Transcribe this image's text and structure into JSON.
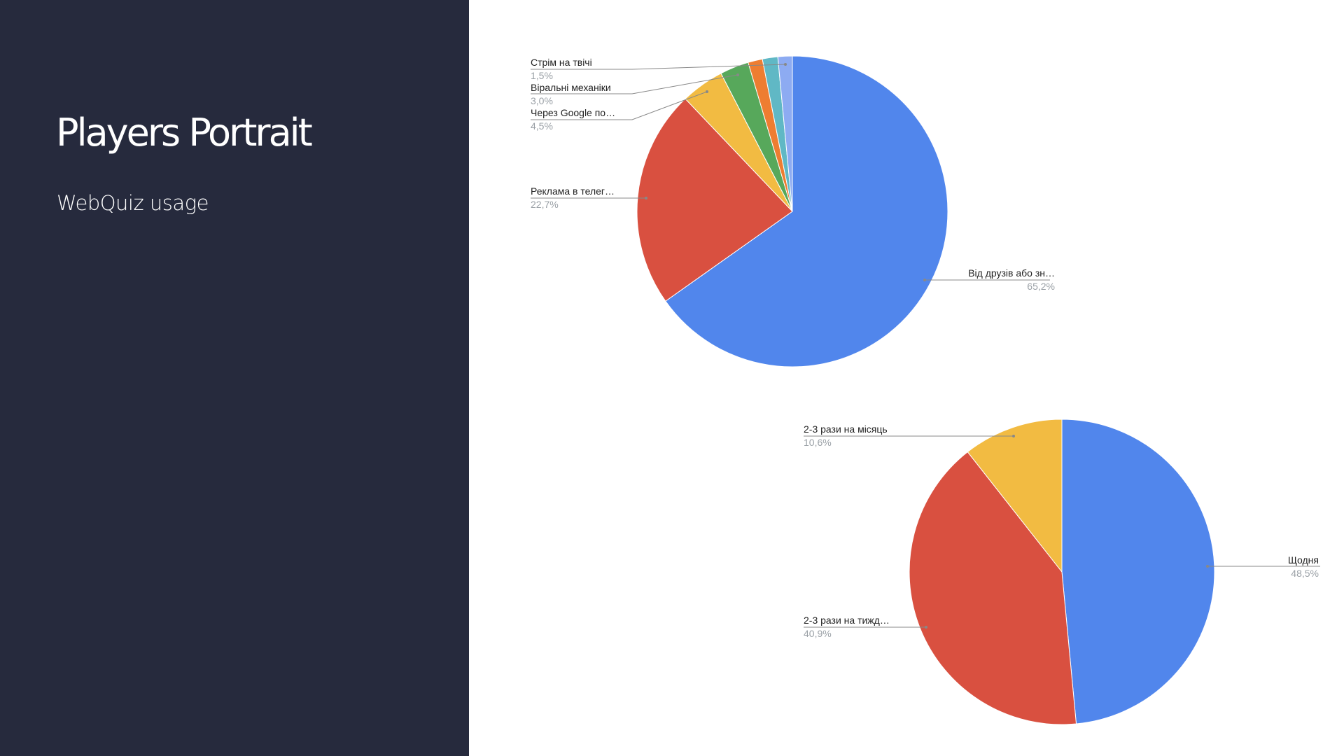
{
  "slide": {
    "title": "Players Portrait",
    "subtitle": "WebQuiz usage"
  },
  "chart_data": [
    {
      "type": "pie",
      "slices": [
        {
          "label": "Від друзів або зн…",
          "value": 65.2,
          "display": "65,2%",
          "color": "#5186ec"
        },
        {
          "label": "Реклама в телег…",
          "value": 22.7,
          "display": "22,7%",
          "color": "#d95040"
        },
        {
          "label": "Через Google по…",
          "value": 4.5,
          "display": "4,5%",
          "color": "#f2bb42"
        },
        {
          "label": "Віральні механіки",
          "value": 3.0,
          "display": "3,0%",
          "color": "#57a85b"
        },
        {
          "label": "",
          "value": 1.5,
          "display": "",
          "color": "#ee7d31"
        },
        {
          "label": "",
          "value": 1.6,
          "display": "",
          "color": "#60b8c5"
        },
        {
          "label": "Стрім на твічі",
          "value": 1.5,
          "display": "1,5%",
          "color": "#8dabf2"
        }
      ]
    },
    {
      "type": "pie",
      "slices": [
        {
          "label": "Щодня",
          "value": 48.5,
          "display": "48,5%",
          "color": "#5186ec"
        },
        {
          "label": "2-3 рази на тижд…",
          "value": 40.9,
          "display": "40,9%",
          "color": "#d95040"
        },
        {
          "label": "2-3 рази на місяць",
          "value": 10.6,
          "display": "10,6%",
          "color": "#f2bb42"
        }
      ]
    }
  ]
}
